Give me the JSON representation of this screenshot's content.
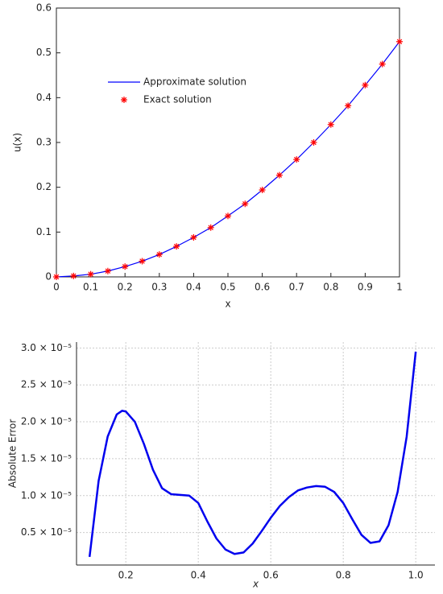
{
  "chart_data": [
    {
      "type": "line",
      "x": [
        0,
        0.05,
        0.1,
        0.15,
        0.2,
        0.25,
        0.3,
        0.35,
        0.4,
        0.45,
        0.5,
        0.55,
        0.6,
        0.65,
        0.7,
        0.75,
        0.8,
        0.85,
        0.9,
        0.95,
        1
      ],
      "series": [
        {
          "name": "Approximate solution",
          "color": "#0000ff",
          "style": "line",
          "values": [
            0,
            0.002,
            0.006,
            0.013,
            0.023,
            0.035,
            0.05,
            0.068,
            0.088,
            0.11,
            0.136,
            0.163,
            0.194,
            0.227,
            0.262,
            0.3,
            0.34,
            0.382,
            0.428,
            0.475,
            0.525
          ]
        },
        {
          "name": "Exact solution",
          "color": "#ff0000",
          "style": "asterisk",
          "values": [
            0,
            0.002,
            0.006,
            0.013,
            0.023,
            0.035,
            0.05,
            0.068,
            0.088,
            0.11,
            0.136,
            0.163,
            0.194,
            0.227,
            0.262,
            0.3,
            0.34,
            0.382,
            0.428,
            0.475,
            0.525
          ]
        }
      ],
      "x_label": "x",
      "y_label": "u(x)",
      "xlim": [
        0,
        1
      ],
      "xticks": [
        0,
        0.1,
        0.2,
        0.3,
        0.4,
        0.5,
        0.6,
        0.7,
        0.8,
        0.9,
        1
      ],
      "ylim": [
        0,
        0.6
      ],
      "yticks": [
        0,
        0.1,
        0.2,
        0.3,
        0.4,
        0.5,
        0.6
      ],
      "grid": false,
      "frame": "box",
      "legend": "upper left"
    },
    {
      "type": "line",
      "x": [
        0.1,
        0.125,
        0.15,
        0.175,
        0.19,
        0.2,
        0.225,
        0.25,
        0.275,
        0.3,
        0.325,
        0.35,
        0.375,
        0.4,
        0.425,
        0.45,
        0.475,
        0.5,
        0.525,
        0.55,
        0.575,
        0.6,
        0.625,
        0.65,
        0.675,
        0.7,
        0.725,
        0.75,
        0.775,
        0.8,
        0.825,
        0.85,
        0.875,
        0.9,
        0.925,
        0.95,
        0.975,
        1.0
      ],
      "values": [
        1.7e-06,
        1.2e-05,
        1.8e-05,
        2.1e-05,
        2.15e-05,
        2.14e-05,
        2e-05,
        1.7e-05,
        1.35e-05,
        1.1e-05,
        1.02e-05,
        1.01e-05,
        1e-05,
        9e-06,
        6.5e-06,
        4.2e-06,
        2.7e-06,
        2.1e-06,
        2.3e-06,
        3.5e-06,
        5.2e-06,
        7e-06,
        8.6e-06,
        9.8e-06,
        1.07e-05,
        1.11e-05,
        1.13e-05,
        1.12e-05,
        1.05e-05,
        9e-06,
        6.8e-06,
        4.7e-06,
        3.6e-06,
        3.8e-06,
        6e-06,
        1.05e-05,
        1.8e-05,
        2.95e-05
      ],
      "color": "#0000ee",
      "x_label": "x",
      "y_label": "Absolute Error",
      "xlim": [
        0.064,
        1.053
      ],
      "xticks": [
        0.2,
        0.4,
        0.6,
        0.8,
        {
          "value": 1,
          "label": "1.0"
        }
      ],
      "ylim": [
        6e-07,
        3.08e-05
      ],
      "yticks": [
        {
          "value": 5e-06,
          "label": "0.5 × 10⁻⁵"
        },
        {
          "value": 1e-05,
          "label": "1.0 × 10⁻⁵"
        },
        {
          "value": 1.5e-05,
          "label": "1.5 × 10⁻⁵"
        },
        {
          "value": 2e-05,
          "label": "2.0 × 10⁻⁵"
        },
        {
          "value": 2.5e-05,
          "label": "2.5 × 10⁻⁵"
        },
        {
          "value": 3e-05,
          "label": "3.0 × 10⁻⁵"
        }
      ],
      "grid": true,
      "frame": "axes",
      "x_label_style": "italic"
    }
  ]
}
